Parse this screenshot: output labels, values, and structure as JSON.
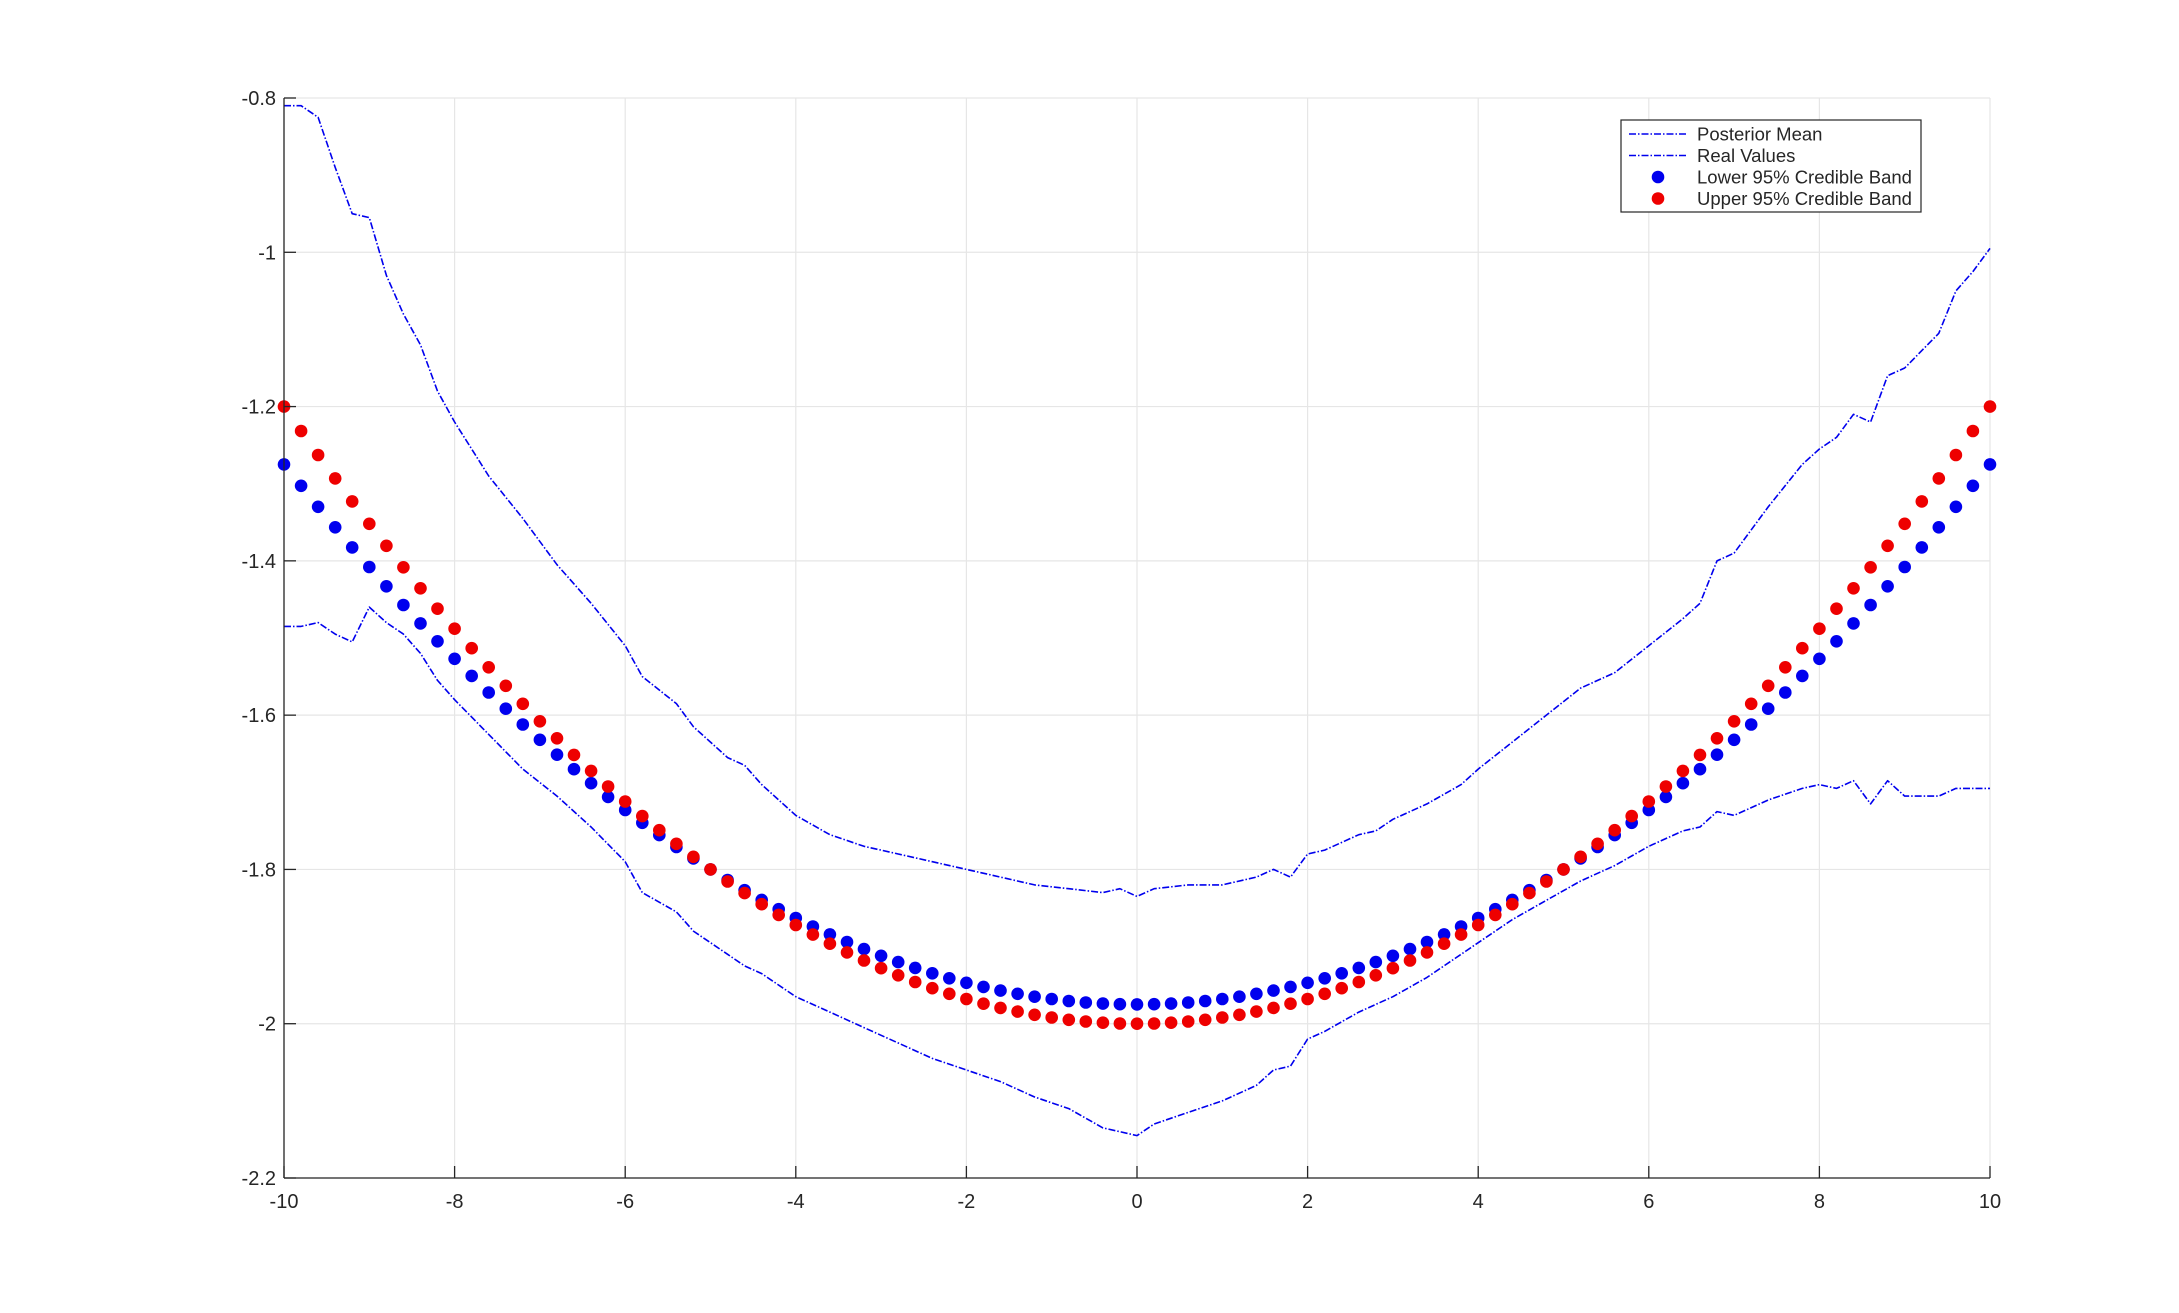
{
  "chart_data": {
    "type": "line",
    "title": "",
    "xlabel": "",
    "ylabel": "",
    "xlim": [
      -10,
      10
    ],
    "ylim": [
      -2.2,
      -0.8
    ],
    "grid": true,
    "legend_position": "top-right",
    "x_ticks": [
      -10,
      -8,
      -6,
      -4,
      -2,
      0,
      2,
      4,
      6,
      8,
      10
    ],
    "y_ticks": [
      -0.8,
      -1,
      -1.2,
      -1.4,
      -1.6,
      -1.8,
      -2,
      -2.2
    ],
    "x_tick_labels": [
      "-10",
      "-8",
      "-6",
      "-4",
      "-2",
      "0",
      "2",
      "4",
      "6",
      "8",
      "10"
    ],
    "y_tick_labels": [
      "-0.8",
      "-1",
      "-1.2",
      "-1.4",
      "-1.6",
      "-1.8",
      "-2",
      "-2.2"
    ],
    "colors": {
      "blue": "#0000ee",
      "red": "#ee0000",
      "axis": "#262626",
      "grid": "#e6e6e6"
    },
    "legend": [
      {
        "label": "Posterior Mean",
        "style": "dashdot-line",
        "color": "#0000ee"
      },
      {
        "label": "Real Values",
        "style": "dashdot-line",
        "color": "#0000ee"
      },
      {
        "label": "Lower 95% Credible Band",
        "style": "dot",
        "color": "#0000ee"
      },
      {
        "label": "Upper 95% Credible Band",
        "style": "dot",
        "color": "#ee0000"
      }
    ],
    "series": [
      {
        "name": "Posterior Mean",
        "style": "line",
        "color": "#0000ee",
        "points": [
          [
            -10,
            -0.81
          ],
          [
            -9.8,
            -0.81
          ],
          [
            -9.6,
            -0.825
          ],
          [
            -9.4,
            -0.89
          ],
          [
            -9.2,
            -0.95
          ],
          [
            -9.0,
            -0.955
          ],
          [
            -8.8,
            -1.03
          ],
          [
            -8.6,
            -1.08
          ],
          [
            -8.4,
            -1.12
          ],
          [
            -8.2,
            -1.18
          ],
          [
            -8.0,
            -1.22
          ],
          [
            -7.6,
            -1.29
          ],
          [
            -7.2,
            -1.345
          ],
          [
            -6.8,
            -1.405
          ],
          [
            -6.4,
            -1.455
          ],
          [
            -6.0,
            -1.51
          ],
          [
            -5.8,
            -1.55
          ],
          [
            -5.4,
            -1.585
          ],
          [
            -5.2,
            -1.615
          ],
          [
            -4.8,
            -1.655
          ],
          [
            -4.6,
            -1.665
          ],
          [
            -4.4,
            -1.69
          ],
          [
            -4.0,
            -1.73
          ],
          [
            -3.6,
            -1.755
          ],
          [
            -3.2,
            -1.77
          ],
          [
            -2.8,
            -1.78
          ],
          [
            -2.4,
            -1.79
          ],
          [
            -2.0,
            -1.8
          ],
          [
            -1.6,
            -1.81
          ],
          [
            -1.2,
            -1.82
          ],
          [
            -0.8,
            -1.825
          ],
          [
            -0.4,
            -1.83
          ],
          [
            -0.2,
            -1.825
          ],
          [
            0.0,
            -1.835
          ],
          [
            0.2,
            -1.825
          ],
          [
            0.6,
            -1.82
          ],
          [
            1.0,
            -1.82
          ],
          [
            1.4,
            -1.81
          ],
          [
            1.6,
            -1.8
          ],
          [
            1.8,
            -1.81
          ],
          [
            2.0,
            -1.78
          ],
          [
            2.2,
            -1.775
          ],
          [
            2.6,
            -1.755
          ],
          [
            2.8,
            -1.75
          ],
          [
            3.0,
            -1.735
          ],
          [
            3.4,
            -1.715
          ],
          [
            3.8,
            -1.69
          ],
          [
            4.0,
            -1.67
          ],
          [
            4.4,
            -1.635
          ],
          [
            4.8,
            -1.6
          ],
          [
            5.2,
            -1.565
          ],
          [
            5.6,
            -1.545
          ],
          [
            6.0,
            -1.51
          ],
          [
            6.4,
            -1.475
          ],
          [
            6.6,
            -1.455
          ],
          [
            6.8,
            -1.4
          ],
          [
            7.0,
            -1.39
          ],
          [
            7.4,
            -1.33
          ],
          [
            7.8,
            -1.275
          ],
          [
            8.0,
            -1.255
          ],
          [
            8.2,
            -1.24
          ],
          [
            8.4,
            -1.21
          ],
          [
            8.6,
            -1.22
          ],
          [
            8.8,
            -1.16
          ],
          [
            9.0,
            -1.15
          ],
          [
            9.4,
            -1.105
          ],
          [
            9.6,
            -1.05
          ],
          [
            9.8,
            -1.025
          ],
          [
            10.0,
            -0.995
          ]
        ]
      },
      {
        "name": "Real Values",
        "style": "line",
        "color": "#0000ee",
        "points": [
          [
            -10,
            -1.485
          ],
          [
            -9.8,
            -1.485
          ],
          [
            -9.6,
            -1.48
          ],
          [
            -9.4,
            -1.495
          ],
          [
            -9.2,
            -1.505
          ],
          [
            -9.0,
            -1.46
          ],
          [
            -8.8,
            -1.48
          ],
          [
            -8.6,
            -1.495
          ],
          [
            -8.4,
            -1.52
          ],
          [
            -8.2,
            -1.555
          ],
          [
            -8.0,
            -1.58
          ],
          [
            -7.6,
            -1.625
          ],
          [
            -7.2,
            -1.67
          ],
          [
            -6.8,
            -1.705
          ],
          [
            -6.4,
            -1.745
          ],
          [
            -6.0,
            -1.79
          ],
          [
            -5.8,
            -1.83
          ],
          [
            -5.4,
            -1.855
          ],
          [
            -5.2,
            -1.88
          ],
          [
            -4.8,
            -1.91
          ],
          [
            -4.6,
            -1.925
          ],
          [
            -4.4,
            -1.935
          ],
          [
            -4.0,
            -1.965
          ],
          [
            -3.6,
            -1.985
          ],
          [
            -3.2,
            -2.005
          ],
          [
            -2.8,
            -2.025
          ],
          [
            -2.4,
            -2.045
          ],
          [
            -2.0,
            -2.06
          ],
          [
            -1.6,
            -2.075
          ],
          [
            -1.2,
            -2.095
          ],
          [
            -0.8,
            -2.11
          ],
          [
            -0.4,
            -2.135
          ],
          [
            -0.2,
            -2.14
          ],
          [
            0.0,
            -2.145
          ],
          [
            0.2,
            -2.13
          ],
          [
            0.6,
            -2.115
          ],
          [
            1.0,
            -2.1
          ],
          [
            1.4,
            -2.08
          ],
          [
            1.6,
            -2.06
          ],
          [
            1.8,
            -2.055
          ],
          [
            2.0,
            -2.02
          ],
          [
            2.2,
            -2.01
          ],
          [
            2.6,
            -1.985
          ],
          [
            2.8,
            -1.975
          ],
          [
            3.0,
            -1.965
          ],
          [
            3.4,
            -1.94
          ],
          [
            3.8,
            -1.91
          ],
          [
            4.0,
            -1.895
          ],
          [
            4.4,
            -1.865
          ],
          [
            4.8,
            -1.84
          ],
          [
            5.2,
            -1.815
          ],
          [
            5.6,
            -1.795
          ],
          [
            6.0,
            -1.77
          ],
          [
            6.4,
            -1.75
          ],
          [
            6.6,
            -1.745
          ],
          [
            6.8,
            -1.725
          ],
          [
            7.0,
            -1.73
          ],
          [
            7.4,
            -1.71
          ],
          [
            7.8,
            -1.695
          ],
          [
            8.0,
            -1.69
          ],
          [
            8.2,
            -1.695
          ],
          [
            8.4,
            -1.685
          ],
          [
            8.6,
            -1.715
          ],
          [
            8.8,
            -1.685
          ],
          [
            9.0,
            -1.705
          ],
          [
            9.4,
            -1.705
          ],
          [
            9.6,
            -1.695
          ],
          [
            9.8,
            -1.695
          ],
          [
            10.0,
            -1.695
          ]
        ]
      },
      {
        "name": "Lower 95% Credible Band",
        "style": "scatter",
        "color": "#0000ee",
        "formula": "y = 0.007*x^2 - 1.975",
        "x": [
          -10.0,
          -9.8,
          -9.6,
          -9.4,
          -9.2,
          -9.0,
          -8.8,
          -8.6,
          -8.4,
          -8.2,
          -8.0,
          -7.8,
          -7.6,
          -7.4,
          -7.2,
          -7.0,
          -6.8,
          -6.6,
          -6.4,
          -6.2,
          -6.0,
          -5.8,
          -5.6,
          -5.4,
          -5.2,
          -5.0,
          -4.8,
          -4.6,
          -4.4,
          -4.2,
          -4.0,
          -3.8,
          -3.6,
          -3.4,
          -3.2,
          -3.0,
          -2.8,
          -2.6,
          -2.4,
          -2.2,
          -2.0,
          -1.8,
          -1.6,
          -1.4,
          -1.2,
          -1.0,
          -0.8,
          -0.6,
          -0.4,
          -0.2,
          0.0,
          0.2,
          0.4,
          0.6,
          0.8,
          1.0,
          1.2,
          1.4,
          1.6,
          1.8,
          2.0,
          2.2,
          2.4,
          2.6,
          2.8,
          3.0,
          3.2,
          3.4,
          3.6,
          3.8,
          4.0,
          4.2,
          4.4,
          4.6,
          4.8,
          5.0,
          5.2,
          5.4,
          5.6,
          5.8,
          6.0,
          6.2,
          6.4,
          6.6,
          6.8,
          7.0,
          7.2,
          7.4,
          7.6,
          7.8,
          8.0,
          8.2,
          8.4,
          8.6,
          8.8,
          9.0,
          9.2,
          9.4,
          9.6,
          9.8,
          10.0
        ]
      },
      {
        "name": "Upper 95% Credible Band",
        "style": "scatter",
        "color": "#ee0000",
        "formula": "y = 0.008*x^2 - 2.0",
        "x": [
          -10.0,
          -9.8,
          -9.6,
          -9.4,
          -9.2,
          -9.0,
          -8.8,
          -8.6,
          -8.4,
          -8.2,
          -8.0,
          -7.8,
          -7.6,
          -7.4,
          -7.2,
          -7.0,
          -6.8,
          -6.6,
          -6.4,
          -6.2,
          -6.0,
          -5.8,
          -5.6,
          -5.4,
          -5.2,
          -5.0,
          -4.8,
          -4.6,
          -4.4,
          -4.2,
          -4.0,
          -3.8,
          -3.6,
          -3.4,
          -3.2,
          -3.0,
          -2.8,
          -2.6,
          -2.4,
          -2.2,
          -2.0,
          -1.8,
          -1.6,
          -1.4,
          -1.2,
          -1.0,
          -0.8,
          -0.6,
          -0.4,
          -0.2,
          0.0,
          0.2,
          0.4,
          0.6,
          0.8,
          1.0,
          1.2,
          1.4,
          1.6,
          1.8,
          2.0,
          2.2,
          2.4,
          2.6,
          2.8,
          3.0,
          3.2,
          3.4,
          3.6,
          3.8,
          4.0,
          4.2,
          4.4,
          4.6,
          4.8,
          5.0,
          5.2,
          5.4,
          5.6,
          5.8,
          6.0,
          6.2,
          6.4,
          6.6,
          6.8,
          7.0,
          7.2,
          7.4,
          7.6,
          7.8,
          8.0,
          8.2,
          8.4,
          8.6,
          8.8,
          9.0,
          9.2,
          9.4,
          9.6,
          9.8,
          10.0
        ]
      }
    ]
  }
}
